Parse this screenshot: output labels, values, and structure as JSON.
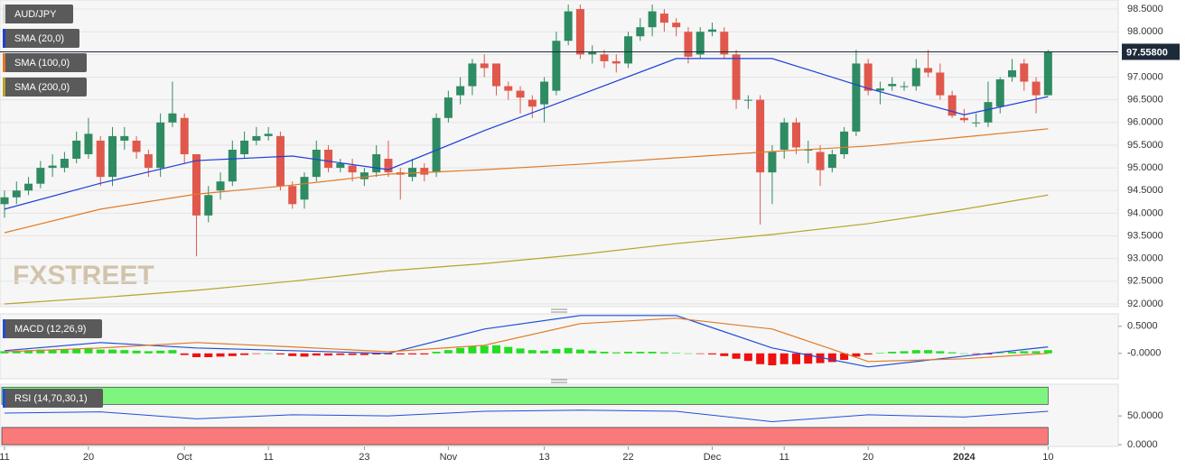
{
  "chart_data": [
    {
      "type": "candlestick",
      "name": "AUD/JPY",
      "watermark": "FXSTREET",
      "categories": [
        "11",
        null,
        null,
        null,
        null,
        null,
        null,
        "20",
        null,
        null,
        null,
        null,
        null,
        null,
        null,
        "Oct",
        null,
        null,
        null,
        null,
        null,
        null,
        "11",
        null,
        null,
        null,
        null,
        null,
        null,
        null,
        "23",
        null,
        null,
        null,
        null,
        null,
        null,
        "Nov",
        null,
        null,
        null,
        null,
        null,
        null,
        null,
        "13",
        null,
        null,
        null,
        null,
        null,
        null,
        "22",
        null,
        null,
        null,
        null,
        null,
        null,
        "Dec",
        null,
        null,
        null,
        null,
        null,
        "11",
        null,
        null,
        null,
        null,
        null,
        null,
        "20",
        null,
        null,
        null,
        null,
        null,
        null,
        null,
        "2024",
        null,
        null,
        null,
        null,
        null,
        null,
        "10"
      ],
      "open": [
        94.2,
        94.35,
        94.5,
        94.65,
        95.0,
        95.0,
        95.2,
        95.3,
        95.6,
        94.8,
        95.6,
        95.6,
        95.3,
        95.0,
        96.0,
        96.1,
        95.3,
        93.95,
        94.5,
        94.7,
        95.3,
        95.6,
        95.7,
        95.7,
        94.6,
        94.3,
        94.8,
        95.4,
        95.0,
        95.05,
        94.75,
        94.9,
        95.2,
        94.9,
        94.8,
        95.0,
        94.9,
        96.1,
        96.6,
        96.8,
        97.3,
        97.3,
        96.8,
        96.7,
        96.5,
        96.4,
        96.7,
        97.8,
        98.5,
        97.5,
        97.5,
        97.35,
        97.3,
        97.9,
        98.1,
        98.4,
        98.2,
        98.0,
        97.5,
        98.0,
        98.0,
        97.5,
        96.5,
        96.5,
        94.9,
        95.4,
        96.0,
        95.4,
        95.35,
        95.0,
        95.3,
        95.8,
        97.3,
        96.7,
        96.8,
        96.8,
        96.8,
        97.2,
        97.1,
        96.6,
        96.1,
        96.0,
        96.0,
        96.35,
        97.0,
        97.3,
        96.9,
        96.6
      ],
      "high": [
        94.5,
        94.7,
        94.8,
        95.15,
        95.3,
        95.35,
        95.8,
        96.1,
        95.7,
        95.9,
        95.9,
        95.7,
        95.4,
        96.2,
        96.9,
        96.2,
        95.3,
        94.6,
        94.9,
        95.6,
        95.8,
        95.9,
        95.9,
        95.8,
        94.7,
        94.9,
        95.6,
        95.5,
        95.2,
        95.2,
        95.0,
        95.5,
        95.6,
        95.0,
        95.2,
        95.1,
        96.2,
        96.7,
        97.0,
        97.4,
        97.5,
        97.3,
        96.9,
        96.8,
        96.6,
        97.0,
        98.0,
        98.6,
        98.6,
        97.7,
        97.6,
        97.5,
        98.0,
        98.3,
        98.6,
        98.5,
        98.3,
        98.1,
        98.1,
        98.2,
        98.1,
        97.6,
        96.6,
        96.6,
        95.5,
        96.1,
        96.1,
        95.6,
        95.5,
        95.4,
        95.9,
        97.6,
        97.4,
        96.9,
        97.0,
        96.9,
        97.4,
        97.6,
        97.3,
        96.7,
        96.3,
        96.2,
        96.9,
        97.0,
        97.4,
        97.4,
        97.0,
        97.6
      ],
      "low": [
        93.9,
        94.2,
        94.4,
        94.55,
        94.8,
        94.9,
        95.1,
        95.2,
        94.6,
        94.6,
        95.4,
        95.2,
        94.8,
        94.8,
        95.9,
        95.1,
        93.05,
        93.8,
        94.3,
        94.6,
        95.2,
        95.5,
        95.6,
        94.5,
        94.1,
        94.1,
        94.7,
        94.9,
        94.9,
        94.7,
        94.6,
        94.8,
        94.8,
        94.3,
        94.7,
        94.7,
        94.8,
        96.0,
        96.4,
        96.6,
        97.0,
        96.6,
        96.5,
        96.2,
        96.1,
        96.0,
        96.6,
        97.7,
        97.4,
        97.3,
        97.2,
        97.1,
        97.2,
        97.8,
        97.9,
        98.0,
        97.9,
        97.3,
        97.4,
        97.9,
        97.4,
        96.3,
        96.3,
        93.75,
        94.2,
        95.2,
        95.3,
        95.1,
        94.6,
        94.9,
        95.2,
        95.7,
        96.6,
        96.4,
        96.7,
        96.7,
        96.7,
        97.0,
        96.5,
        96.1,
        96.0,
        95.9,
        95.9,
        96.2,
        96.9,
        96.7,
        96.2,
        96.6
      ],
      "close": [
        94.35,
        94.5,
        94.65,
        95.0,
        95.05,
        95.2,
        95.6,
        95.75,
        94.8,
        95.7,
        95.7,
        95.35,
        95.0,
        96.0,
        96.2,
        95.3,
        93.95,
        94.4,
        94.7,
        95.4,
        95.6,
        95.7,
        95.75,
        94.6,
        94.2,
        94.8,
        95.4,
        95.0,
        95.1,
        94.9,
        94.9,
        95.3,
        94.9,
        94.85,
        95.0,
        94.85,
        96.1,
        96.55,
        96.8,
        97.3,
        97.2,
        96.8,
        96.7,
        96.55,
        96.35,
        96.9,
        97.8,
        98.45,
        97.5,
        97.55,
        97.35,
        97.3,
        97.9,
        98.1,
        98.45,
        98.2,
        98.1,
        97.45,
        98.0,
        98.05,
        97.5,
        96.5,
        96.5,
        94.9,
        95.35,
        96.0,
        95.45,
        95.4,
        94.95,
        95.3,
        95.8,
        97.3,
        96.7,
        96.75,
        96.85,
        96.8,
        97.2,
        97.1,
        96.6,
        96.15,
        96.05,
        96.0,
        96.45,
        96.95,
        97.15,
        96.9,
        96.6,
        97.558
      ],
      "up_color": "#2e8b62",
      "down_color": "#e0584c",
      "ylim": [
        91.94,
        98.7
      ],
      "yticks": [
        {
          "value": 92.0,
          "label": "92.0000"
        },
        {
          "value": 92.5,
          "label": "92.5000"
        },
        {
          "value": 93.0,
          "label": "93.0000"
        },
        {
          "value": 93.5,
          "label": "93.5000"
        },
        {
          "value": 94.0,
          "label": "94.0000"
        },
        {
          "value": 94.5,
          "label": "94.5000"
        },
        {
          "value": 95.0,
          "label": "95.0000"
        },
        {
          "value": 95.5,
          "label": "95.5000"
        },
        {
          "value": 96.0,
          "label": "96.0000"
        },
        {
          "value": 96.5,
          "label": "96.5000"
        },
        {
          "value": 97.0,
          "label": "97.0000"
        },
        {
          "value": 97.5,
          "label": "97.5000"
        },
        {
          "value": 98.0,
          "label": "98.0000"
        },
        {
          "value": 98.5,
          "label": "98.5000"
        }
      ],
      "last_price": {
        "value": 97.558,
        "label": "97.55800"
      },
      "grid": true,
      "overlays": [
        {
          "name": "SMA (20,0)",
          "color": "#1f3fd8",
          "x": [
            0,
            8,
            16,
            24,
            32,
            40,
            48,
            56,
            64,
            72,
            80,
            87
          ],
          "values": [
            94.09,
            94.66,
            95.16,
            95.26,
            94.96,
            95.82,
            96.61,
            97.41,
            97.41,
            96.75,
            96.17,
            96.57
          ]
        },
        {
          "name": "SMA (100,0)",
          "color": "#e07b28",
          "x": [
            0,
            8,
            16,
            24,
            32,
            40,
            48,
            56,
            64,
            72,
            80,
            87
          ],
          "values": [
            93.57,
            94.09,
            94.42,
            94.62,
            94.86,
            94.96,
            95.08,
            95.22,
            95.36,
            95.48,
            95.68,
            95.86
          ]
        },
        {
          "name": "SMA (200,0)",
          "color": "#b5a42a",
          "x": [
            0,
            8,
            16,
            24,
            32,
            40,
            48,
            56,
            64,
            72,
            80,
            87
          ],
          "values": [
            92.0,
            92.14,
            92.3,
            92.5,
            92.73,
            92.89,
            93.09,
            93.33,
            93.53,
            93.77,
            94.09,
            94.4
          ]
        }
      ]
    },
    {
      "type": "macd",
      "title": "MACD (12,26,9)",
      "histogram": [
        0.04,
        0.05,
        0.06,
        0.07,
        0.07,
        0.08,
        0.09,
        0.1,
        0.07,
        0.07,
        0.06,
        0.05,
        0.04,
        0.05,
        0.06,
        -0.03,
        -0.07,
        -0.07,
        -0.06,
        -0.05,
        -0.03,
        -0.01,
        0.0,
        -0.02,
        -0.05,
        -0.06,
        -0.04,
        -0.04,
        -0.03,
        -0.03,
        -0.03,
        -0.02,
        -0.02,
        -0.02,
        -0.02,
        -0.02,
        0.03,
        0.06,
        0.1,
        0.13,
        0.14,
        0.15,
        0.12,
        0.09,
        0.06,
        0.05,
        0.08,
        0.1,
        0.07,
        0.05,
        0.03,
        0.02,
        0.03,
        0.03,
        0.03,
        0.02,
        0.01,
        0.0,
        -0.01,
        -0.02,
        -0.05,
        -0.1,
        -0.14,
        -0.2,
        -0.22,
        -0.2,
        -0.2,
        -0.19,
        -0.18,
        -0.16,
        -0.12,
        -0.06,
        -0.02,
        0.01,
        0.03,
        0.04,
        0.06,
        0.06,
        0.04,
        0.02,
        0.0,
        -0.01,
        -0.02,
        0.01,
        0.03,
        0.04,
        0.04,
        0.06
      ],
      "up_color": "#22dd22",
      "down_color": "#ee1111",
      "series": [
        {
          "color": "#1f4fd8",
          "x": [
            0,
            8,
            16,
            24,
            32,
            40,
            48,
            56,
            64,
            72,
            80,
            87
          ],
          "values": [
            0.05,
            0.2,
            0.1,
            0.05,
            0.0,
            0.45,
            0.7,
            0.7,
            0.1,
            -0.25,
            -0.05,
            0.12
          ]
        },
        {
          "color": "#e07b28",
          "x": [
            0,
            8,
            16,
            24,
            32,
            40,
            48,
            56,
            64,
            72,
            80,
            87
          ],
          "values": [
            0.03,
            0.1,
            0.2,
            0.12,
            0.03,
            0.15,
            0.55,
            0.65,
            0.45,
            -0.15,
            -0.1,
            0.0
          ]
        }
      ],
      "ylim": [
        -0.47,
        0.73
      ],
      "yticks": [
        {
          "value": 0.5,
          "label": "0.5000"
        },
        {
          "value": 0,
          "label": "-0.0000"
        }
      ]
    },
    {
      "type": "rsi",
      "title": "RSI (14,70,30,1)",
      "color": "#1f4fd8",
      "x": [
        0,
        8,
        16,
        24,
        32,
        40,
        48,
        56,
        64,
        72,
        80,
        87
      ],
      "values": [
        55,
        57,
        45,
        52,
        50,
        58,
        60,
        58,
        40,
        52,
        48,
        58
      ],
      "zones": [
        {
          "range": [
            70,
            100
          ],
          "color": "#7ef57e"
        },
        {
          "range": [
            0,
            30
          ],
          "color": "#f87a7a"
        }
      ],
      "ylim": [
        -3,
        105
      ],
      "yticks": [
        {
          "value": 50,
          "label": "50.0000"
        },
        {
          "value": 0,
          "label": "0.0000"
        }
      ]
    }
  ]
}
